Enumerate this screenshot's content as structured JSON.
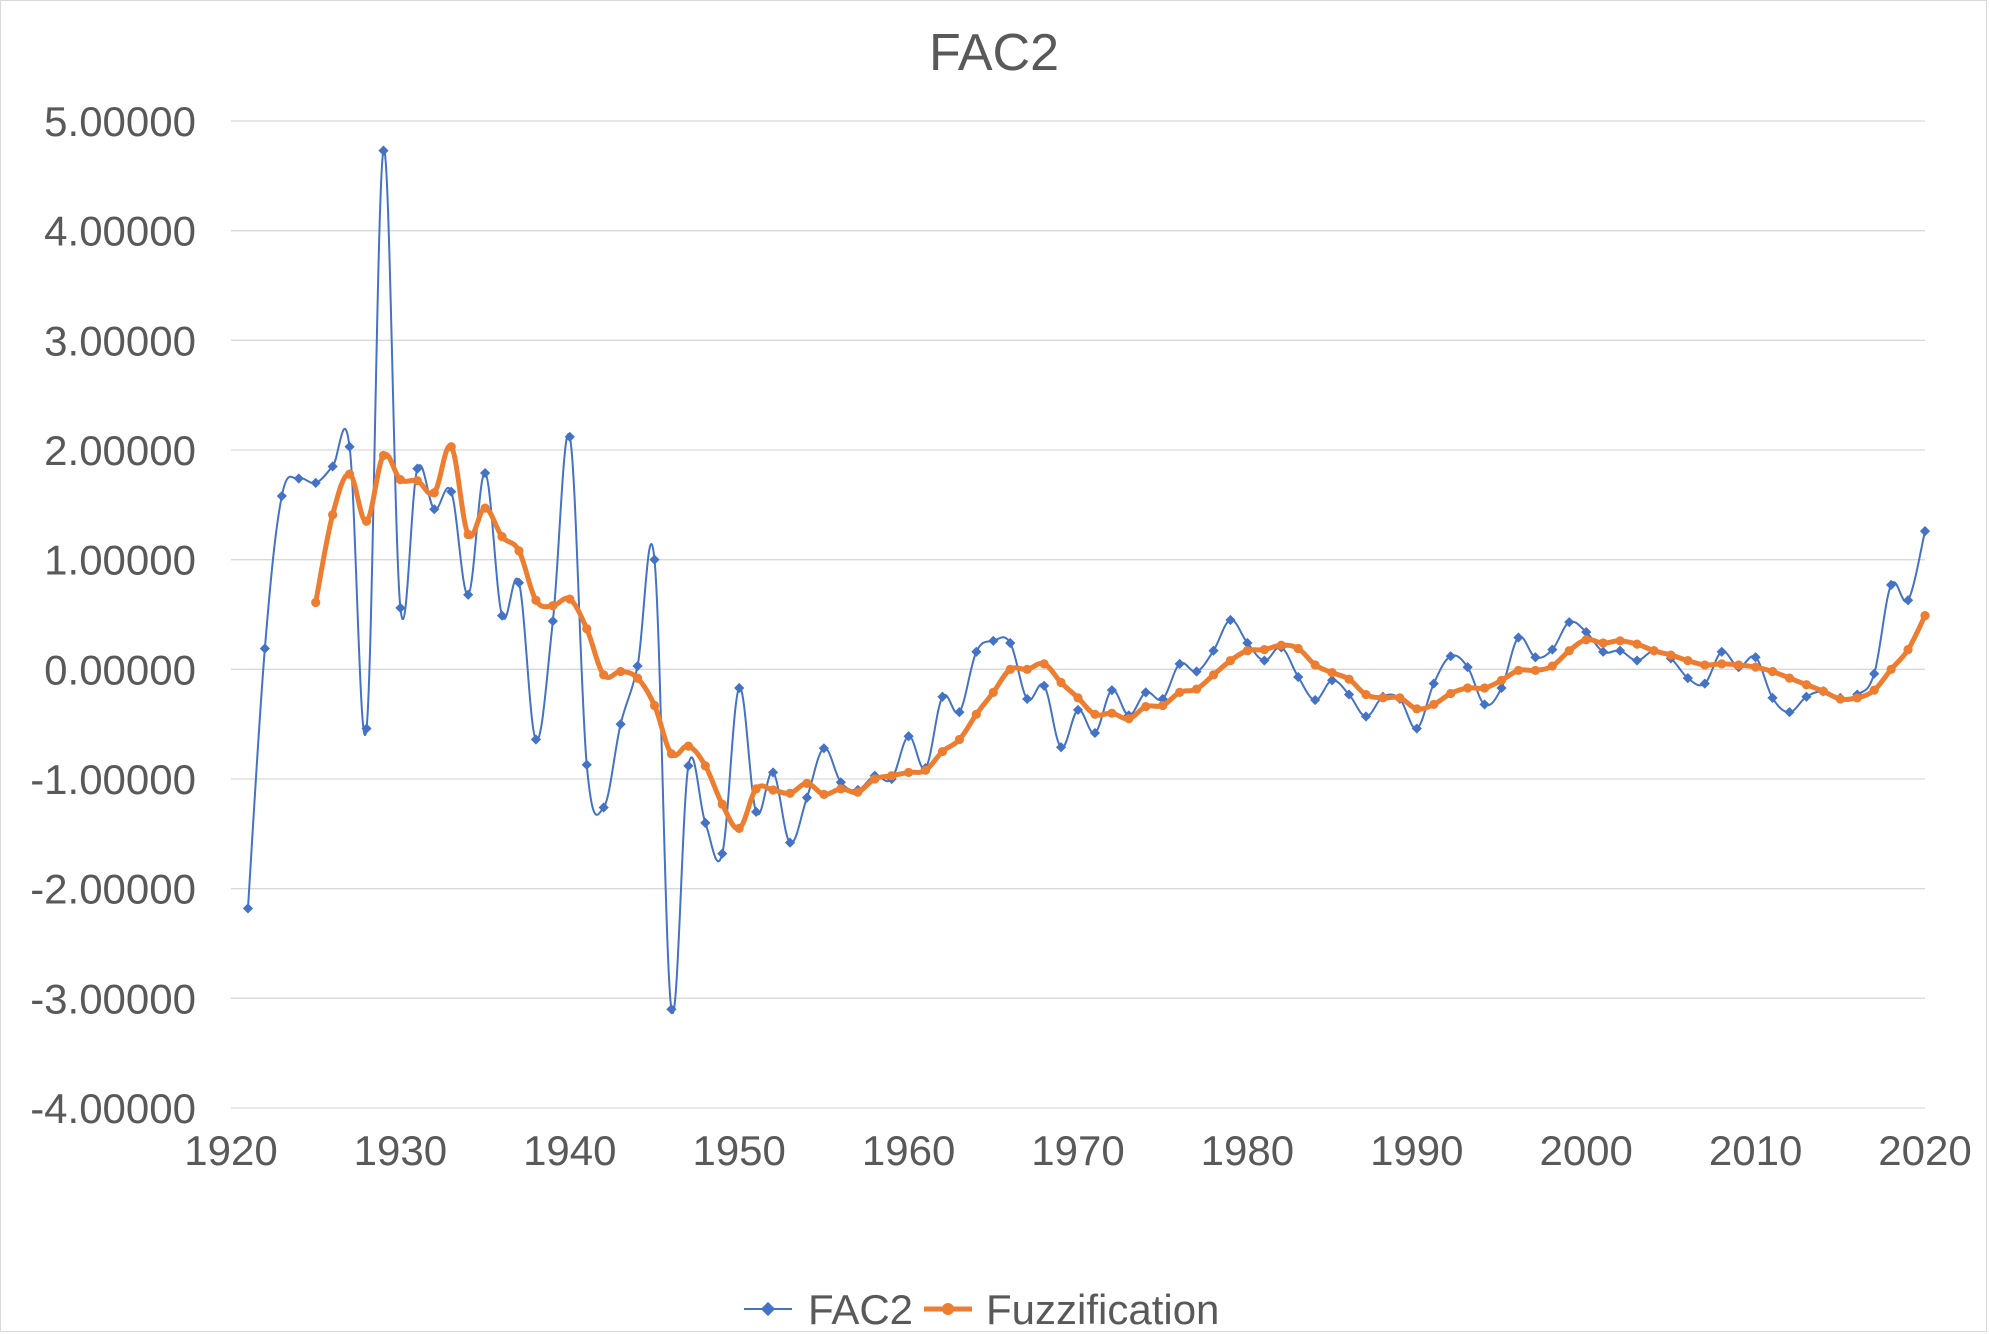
{
  "chart_data": {
    "type": "line",
    "title": "FAC2",
    "xlabel": "",
    "ylabel": "",
    "xlim": [
      1920,
      2020
    ],
    "ylim": [
      -4,
      5
    ],
    "x_ticks": [
      1920,
      1930,
      1940,
      1950,
      1960,
      1970,
      1980,
      1990,
      2000,
      2010,
      2020
    ],
    "x_tick_labels": [
      "1920",
      "1930",
      "1940",
      "1950",
      "1960",
      "1970",
      "1980",
      "1990",
      "2000",
      "2010",
      "2020"
    ],
    "y_ticks": [
      5,
      4,
      3,
      2,
      1,
      0,
      -1,
      -2,
      -3,
      -4
    ],
    "y_tick_labels": [
      "5.00000",
      "4.00000",
      "3.00000",
      "2.00000",
      "1.00000",
      "0.00000",
      "-1.00000",
      "-2.00000",
      "-3.00000",
      "-4.00000"
    ],
    "grid": true,
    "legend_position": "bottom-center",
    "series": [
      {
        "name": "FAC2",
        "color": "#4472c4",
        "marker": "diamond",
        "x": [
          1921,
          1922,
          1923,
          1924,
          1925,
          1926,
          1927,
          1928,
          1929,
          1930,
          1931,
          1932,
          1933,
          1934,
          1935,
          1936,
          1937,
          1938,
          1939,
          1940,
          1941,
          1942,
          1943,
          1944,
          1945,
          1946,
          1947,
          1948,
          1949,
          1950,
          1951,
          1952,
          1953,
          1954,
          1955,
          1956,
          1957,
          1958,
          1959,
          1960,
          1961,
          1962,
          1963,
          1964,
          1965,
          1966,
          1967,
          1968,
          1969,
          1970,
          1971,
          1972,
          1973,
          1974,
          1975,
          1976,
          1977,
          1978,
          1979,
          1980,
          1981,
          1982,
          1983,
          1984,
          1985,
          1986,
          1987,
          1988,
          1989,
          1990,
          1991,
          1992,
          1993,
          1994,
          1995,
          1996,
          1997,
          1998,
          1999,
          2000,
          2001,
          2002,
          2003,
          2004,
          2005,
          2006,
          2007,
          2008,
          2009,
          2010,
          2011,
          2012,
          2013,
          2014,
          2015,
          2016,
          2017,
          2018,
          2019,
          2020
        ],
        "values": [
          -2.18,
          0.19,
          1.58,
          1.74,
          1.7,
          1.85,
          2.03,
          -0.54,
          4.73,
          0.56,
          1.83,
          1.46,
          1.62,
          0.68,
          1.79,
          0.49,
          0.79,
          -0.64,
          0.44,
          2.12,
          -0.87,
          -1.26,
          -0.5,
          0.03,
          1.0,
          -3.1,
          -0.88,
          -1.4,
          -1.68,
          -0.17,
          -1.3,
          -0.94,
          -1.58,
          -1.17,
          -0.72,
          -1.03,
          -1.1,
          -0.97,
          -1.0,
          -0.61,
          -0.9,
          -0.25,
          -0.39,
          0.16,
          0.26,
          0.24,
          -0.27,
          -0.15,
          -0.71,
          -0.37,
          -0.58,
          -0.19,
          -0.42,
          -0.21,
          -0.27,
          0.05,
          -0.02,
          0.17,
          0.45,
          0.24,
          0.08,
          0.2,
          -0.07,
          -0.28,
          -0.1,
          -0.23,
          -0.43,
          -0.25,
          -0.27,
          -0.54,
          -0.13,
          0.12,
          0.02,
          -0.32,
          -0.17,
          0.29,
          0.11,
          0.18,
          0.43,
          0.34,
          0.16,
          0.17,
          0.08,
          0.17,
          0.1,
          -0.08,
          -0.13,
          0.16,
          0.02,
          0.11,
          -0.26,
          -0.39,
          -0.25,
          -0.2,
          -0.26,
          -0.23,
          -0.04,
          0.77,
          0.63,
          1.26
        ]
      },
      {
        "name": "Fuzzification",
        "color": "#ed7d31",
        "marker": "circle",
        "x": [
          1925,
          1926,
          1927,
          1928,
          1929,
          1930,
          1931,
          1932,
          1933,
          1934,
          1935,
          1936,
          1937,
          1938,
          1939,
          1940,
          1941,
          1942,
          1943,
          1944,
          1945,
          1946,
          1947,
          1948,
          1949,
          1950,
          1951,
          1952,
          1953,
          1954,
          1955,
          1956,
          1957,
          1958,
          1959,
          1960,
          1961,
          1962,
          1963,
          1964,
          1965,
          1966,
          1967,
          1968,
          1969,
          1970,
          1971,
          1972,
          1973,
          1974,
          1975,
          1976,
          1977,
          1978,
          1979,
          1980,
          1981,
          1982,
          1983,
          1984,
          1985,
          1986,
          1987,
          1988,
          1989,
          1990,
          1991,
          1992,
          1993,
          1994,
          1995,
          1996,
          1997,
          1998,
          1999,
          2000,
          2001,
          2002,
          2003,
          2004,
          2005,
          2006,
          2007,
          2008,
          2009,
          2010,
          2011,
          2012,
          2013,
          2014,
          2015,
          2016,
          2017,
          2018,
          2019,
          2020
        ],
        "values": [
          0.61,
          1.41,
          1.78,
          1.35,
          1.95,
          1.73,
          1.72,
          1.61,
          2.03,
          1.23,
          1.47,
          1.21,
          1.08,
          0.63,
          0.58,
          0.64,
          0.37,
          -0.05,
          -0.02,
          -0.08,
          -0.33,
          -0.77,
          -0.7,
          -0.88,
          -1.23,
          -1.45,
          -1.09,
          -1.1,
          -1.13,
          -1.04,
          -1.14,
          -1.09,
          -1.12,
          -1.0,
          -0.97,
          -0.94,
          -0.92,
          -0.75,
          -0.64,
          -0.41,
          -0.21,
          0.0,
          0.0,
          0.05,
          -0.12,
          -0.26,
          -0.41,
          -0.4,
          -0.45,
          -0.34,
          -0.33,
          -0.21,
          -0.18,
          -0.05,
          0.08,
          0.17,
          0.18,
          0.22,
          0.19,
          0.04,
          -0.03,
          -0.09,
          -0.23,
          -0.26,
          -0.26,
          -0.36,
          -0.32,
          -0.22,
          -0.17,
          -0.17,
          -0.1,
          -0.01,
          -0.01,
          0.03,
          0.17,
          0.27,
          0.24,
          0.26,
          0.23,
          0.17,
          0.13,
          0.08,
          0.04,
          0.05,
          0.04,
          0.02,
          -0.02,
          -0.08,
          -0.14,
          -0.2,
          -0.27,
          -0.26,
          -0.19,
          0.0,
          0.18,
          0.49
        ]
      }
    ]
  }
}
